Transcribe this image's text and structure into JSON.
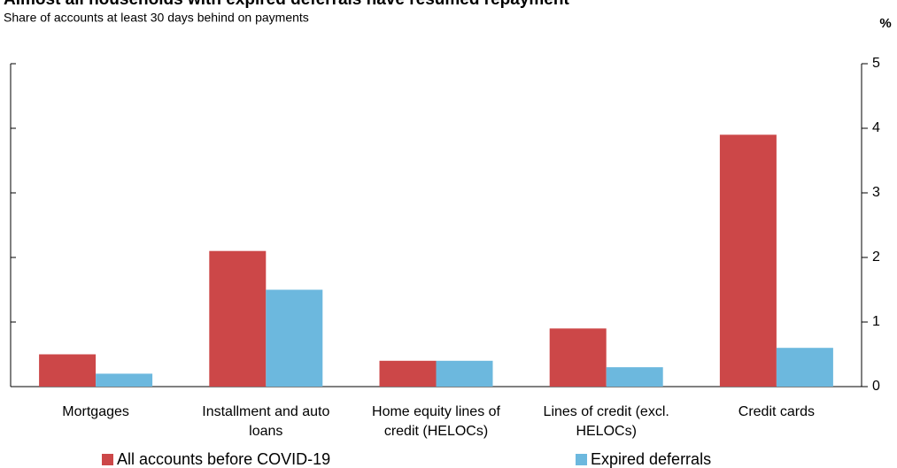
{
  "chart_data": {
    "type": "bar",
    "title": "Almost all households with expired deferrals have resumed repayment",
    "subtitle": "Share of accounts at least 30 days behind on payments",
    "y_axis_label": "%",
    "categories": [
      "Mortgages",
      "Installment and auto loans",
      "Home equity lines of credit (HELOCs)",
      "Lines of credit (excl. HELOCs)",
      "Credit cards"
    ],
    "series": [
      {
        "name": "All accounts before COVID-19",
        "color": "#cc4748",
        "values": [
          0.5,
          2.1,
          0.4,
          0.9,
          3.9
        ]
      },
      {
        "name": "Expired deferrals",
        "color": "#6cb8de",
        "values": [
          0.2,
          1.5,
          0.4,
          0.3,
          0.6
        ]
      }
    ],
    "ylim": [
      0,
      5
    ],
    "yticks": [
      0,
      1,
      2,
      3,
      4,
      5
    ],
    "grid": false,
    "legend": "bottom"
  }
}
